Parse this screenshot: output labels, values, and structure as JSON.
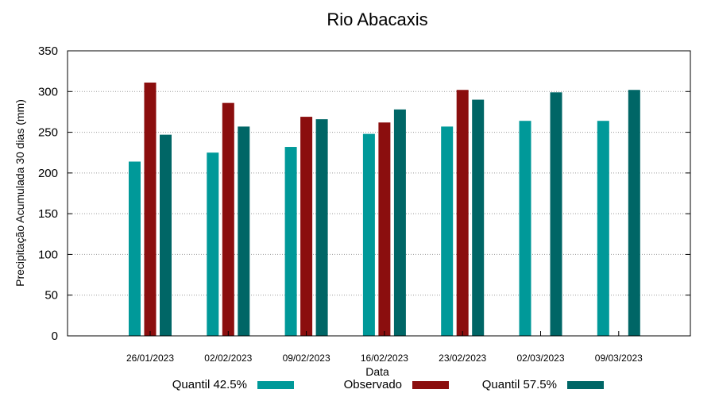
{
  "chart_data": {
    "type": "bar",
    "title": "Rio Abacaxis",
    "xlabel": "Data",
    "ylabel": "Precipitação Acumulada 30 dias (mm)",
    "ylim": [
      0,
      350
    ],
    "yticks": [
      0,
      50,
      100,
      150,
      200,
      250,
      300,
      350
    ],
    "grid": true,
    "legend_position": "bottom",
    "categories": [
      "26/01/2023",
      "02/02/2023",
      "09/02/2023",
      "16/02/2023",
      "23/02/2023",
      "02/03/2023",
      "09/03/2023"
    ],
    "series": [
      {
        "name": "Quantil 42.5%",
        "color": "#009999",
        "values": [
          214,
          225,
          232,
          248,
          257,
          264,
          264
        ]
      },
      {
        "name": "Observado",
        "color": "#8b0e0e",
        "values": [
          311,
          286,
          269,
          262,
          302,
          null,
          null
        ]
      },
      {
        "name": "Quantil 57.5%",
        "color": "#006666",
        "values": [
          247,
          257,
          266,
          278,
          290,
          299,
          302
        ]
      }
    ]
  }
}
